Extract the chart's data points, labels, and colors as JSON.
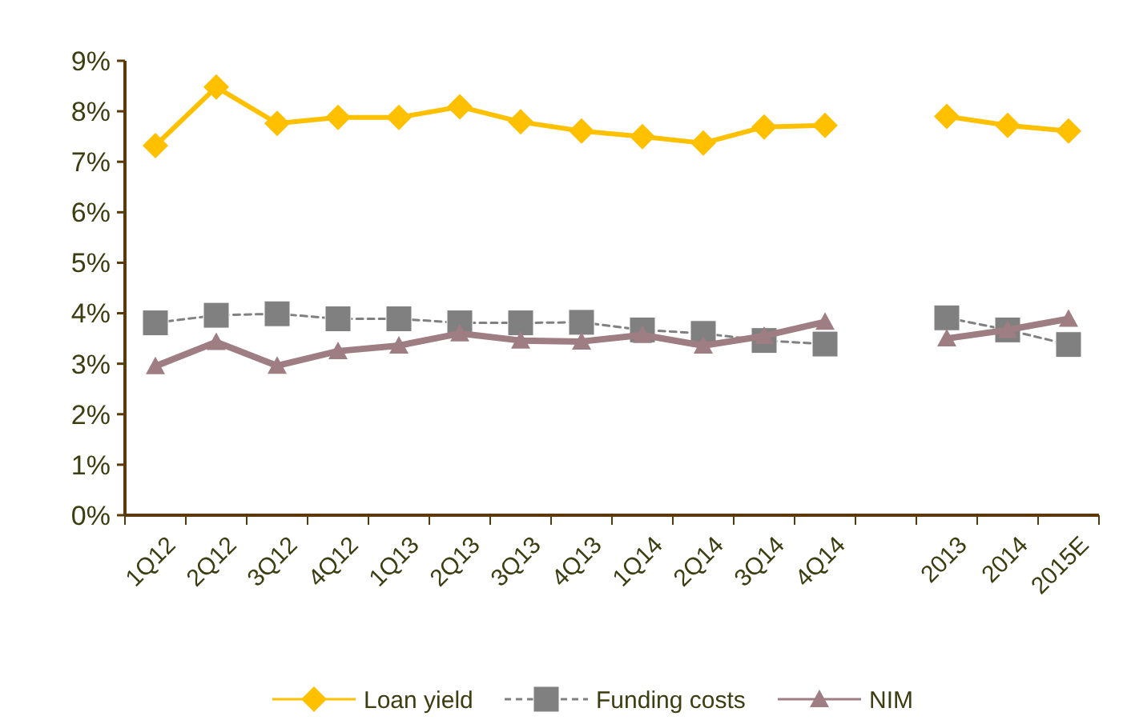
{
  "chart_data": {
    "type": "line",
    "categories": [
      "1Q12",
      "2Q12",
      "3Q12",
      "4Q12",
      "1Q13",
      "2Q13",
      "3Q13",
      "4Q13",
      "1Q14",
      "2Q14",
      "3Q14",
      "4Q14",
      null,
      "2013",
      "2014",
      "2015E"
    ],
    "series": [
      {
        "name": "Loan yield",
        "color": "#ffc000",
        "marker": "diamond",
        "line_style": "solid",
        "values": [
          7.32,
          8.48,
          7.76,
          7.88,
          7.88,
          8.09,
          7.79,
          7.61,
          7.5,
          7.37,
          7.69,
          7.72,
          null,
          7.9,
          7.72,
          7.61
        ]
      },
      {
        "name": "Funding costs",
        "color": "#808080",
        "marker": "square",
        "line_style": "dashed",
        "values": [
          3.81,
          3.96,
          3.99,
          3.89,
          3.89,
          3.81,
          3.81,
          3.82,
          3.67,
          3.6,
          3.46,
          3.39,
          null,
          3.91,
          3.67,
          3.38
        ]
      },
      {
        "name": "NIM",
        "color": "#9e7d83",
        "marker": "triangle",
        "line_style": "solid",
        "values": [
          2.95,
          3.43,
          2.96,
          3.25,
          3.36,
          3.6,
          3.46,
          3.44,
          3.57,
          3.36,
          3.55,
          3.83,
          null,
          3.5,
          3.67,
          3.89
        ]
      }
    ],
    "ylim": [
      0,
      9
    ],
    "yticks": [
      {
        "value": 0,
        "label": "0%"
      },
      {
        "value": 1,
        "label": "1%"
      },
      {
        "value": 2,
        "label": "2%"
      },
      {
        "value": 3,
        "label": "3%"
      },
      {
        "value": 4,
        "label": "4%"
      },
      {
        "value": 5,
        "label": "5%"
      },
      {
        "value": 6,
        "label": "6%"
      },
      {
        "value": 7,
        "label": "7%"
      },
      {
        "value": 8,
        "label": "8%"
      },
      {
        "value": 9,
        "label": "9%"
      }
    ],
    "grid": false,
    "legend": "bottom"
  }
}
